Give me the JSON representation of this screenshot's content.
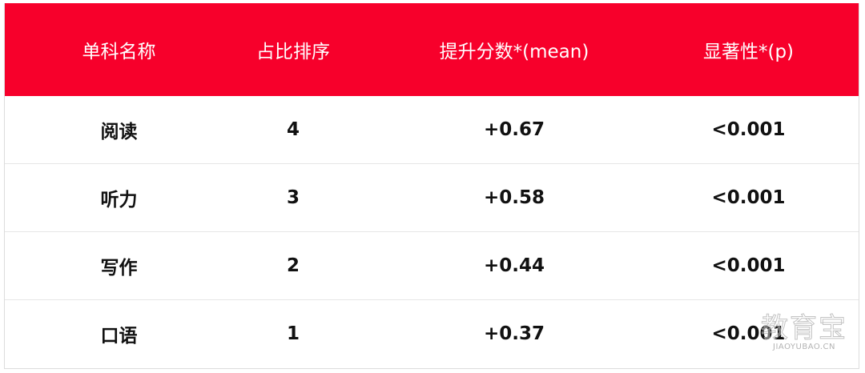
{
  "table": {
    "header_color": "#f7002b",
    "columns": [
      "单科名称",
      "占比排序",
      "提升分数*(mean)",
      "显著性*(p)"
    ],
    "rows": [
      [
        "阅读",
        "4",
        "+0.67",
        "<0.001"
      ],
      [
        "听力",
        "3",
        "+0.58",
        "<0.001"
      ],
      [
        "写作",
        "2",
        "+0.44",
        "<0.001"
      ],
      [
        "口语",
        "1",
        "+0.37",
        "<0.001"
      ]
    ]
  },
  "watermark": {
    "main": "教育宝",
    "sub": "JIAOYUBAO.CN"
  }
}
